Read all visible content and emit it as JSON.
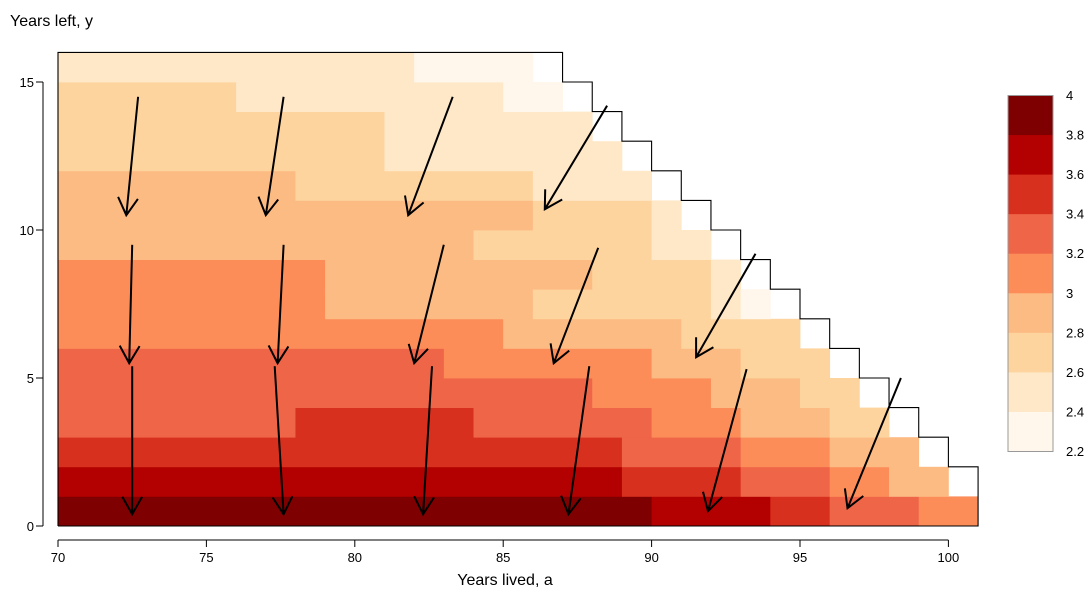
{
  "chart_data": {
    "type": "heatmap",
    "title": "",
    "xlabel": "Years lived, a",
    "ylabel": "Years left, y",
    "xlim": [
      70,
      101
    ],
    "ylim": [
      0,
      16
    ],
    "x_ticks": [
      "70",
      "75",
      "80",
      "85",
      "90",
      "95",
      "100"
    ],
    "y_ticks": [
      "0",
      "5",
      "10",
      "15"
    ],
    "legend": {
      "position": "right",
      "labels": [
        "4",
        "3.8",
        "3.6",
        "3.4",
        "3.2",
        "3",
        "2.8",
        "2.6",
        "2.4",
        "2.2"
      ],
      "colors": [
        "#7f0000",
        "#b30000",
        "#d7301f",
        "#ef6548",
        "#fc8d59",
        "#fdbb84",
        "#fdd49e",
        "#fee8c8",
        "#fff7ec"
      ]
    },
    "palette": {
      "2.2-2.4": "#fff7ec",
      "2.4-2.6": "#fee8c8",
      "2.6-2.8": "#fdd49e",
      "2.8-3.0": "#fdbb84",
      "3.0-3.2": "#fc8d59",
      "3.2-3.4": "#ef6548",
      "3.4-3.6": "#d7301f",
      "3.6-3.8": "#b30000",
      "3.8-4.0": "#7f0000"
    },
    "domain_edge": [
      {
        "a": 70,
        "max_y": 16
      },
      {
        "a": 86,
        "max_y": 16
      },
      {
        "a": 87,
        "max_y": 15
      },
      {
        "a": 88,
        "max_y": 14
      },
      {
        "a": 89,
        "max_y": 13
      },
      {
        "a": 90,
        "max_y": 12
      },
      {
        "a": 91,
        "max_y": 11
      },
      {
        "a": 92,
        "max_y": 10
      },
      {
        "a": 93,
        "max_y": 9
      },
      {
        "a": 94,
        "max_y": 8
      },
      {
        "a": 95,
        "max_y": 7
      },
      {
        "a": 96,
        "max_y": 6
      },
      {
        "a": 97,
        "max_y": 5
      },
      {
        "a": 98,
        "max_y": 4
      },
      {
        "a": 99,
        "max_y": 3
      },
      {
        "a": 100,
        "max_y": 2
      },
      {
        "a": 101,
        "max_y": 1
      }
    ],
    "bands": [
      {
        "y": [
          0,
          1
        ],
        "segments": [
          [
            70,
            90,
            "3.8-4.0"
          ],
          [
            90,
            94,
            "3.6-3.8"
          ],
          [
            94,
            96,
            "3.4-3.6"
          ],
          [
            96,
            99,
            "3.2-3.4"
          ],
          [
            99,
            101,
            "3.0-3.2"
          ]
        ]
      },
      {
        "y": [
          1,
          2
        ],
        "segments": [
          [
            70,
            89,
            "3.6-3.8"
          ],
          [
            89,
            93,
            "3.4-3.6"
          ],
          [
            93,
            96,
            "3.2-3.4"
          ],
          [
            96,
            98,
            "3.0-3.2"
          ],
          [
            98,
            100,
            "2.8-3.0"
          ]
        ]
      },
      {
        "y": [
          2,
          3
        ],
        "segments": [
          [
            70,
            89,
            "3.4-3.6"
          ],
          [
            89,
            93,
            "3.2-3.4"
          ],
          [
            93,
            96,
            "3.0-3.2"
          ],
          [
            96,
            99,
            "2.8-3.0"
          ]
        ]
      },
      {
        "y": [
          3,
          4
        ],
        "segments": [
          [
            70,
            78,
            "3.2-3.4"
          ],
          [
            78,
            84,
            "3.4-3.6"
          ],
          [
            84,
            90,
            "3.2-3.4"
          ],
          [
            90,
            93,
            "3.0-3.2"
          ],
          [
            93,
            96,
            "2.8-3.0"
          ],
          [
            96,
            98,
            "2.6-2.8"
          ]
        ]
      },
      {
        "y": [
          4,
          5
        ],
        "segments": [
          [
            70,
            88,
            "3.2-3.4"
          ],
          [
            88,
            92,
            "3.0-3.2"
          ],
          [
            92,
            95,
            "2.8-3.0"
          ],
          [
            95,
            97,
            "2.6-2.8"
          ]
        ]
      },
      {
        "y": [
          5,
          6
        ],
        "segments": [
          [
            70,
            83,
            "3.2-3.4"
          ],
          [
            83,
            90,
            "3.0-3.2"
          ],
          [
            90,
            93,
            "2.8-3.0"
          ],
          [
            93,
            96,
            "2.6-2.8"
          ]
        ]
      },
      {
        "y": [
          6,
          7
        ],
        "segments": [
          [
            70,
            85,
            "3.0-3.2"
          ],
          [
            85,
            91,
            "2.8-3.0"
          ],
          [
            91,
            95,
            "2.6-2.8"
          ]
        ]
      },
      {
        "y": [
          7,
          8
        ],
        "segments": [
          [
            70,
            79,
            "3.0-3.2"
          ],
          [
            79,
            86,
            "2.8-3.0"
          ],
          [
            86,
            92,
            "2.6-2.8"
          ],
          [
            92,
            93,
            "2.4-2.6"
          ],
          [
            93,
            94,
            "2.2-2.4"
          ]
        ]
      },
      {
        "y": [
          8,
          9
        ],
        "segments": [
          [
            70,
            79,
            "3.0-3.2"
          ],
          [
            79,
            88,
            "2.8-3.0"
          ],
          [
            88,
            92,
            "2.6-2.8"
          ],
          [
            92,
            93,
            "2.4-2.6"
          ]
        ]
      },
      {
        "y": [
          9,
          10
        ],
        "segments": [
          [
            70,
            84,
            "2.8-3.0"
          ],
          [
            84,
            90,
            "2.6-2.8"
          ],
          [
            90,
            92,
            "2.4-2.6"
          ]
        ]
      },
      {
        "y": [
          10,
          11
        ],
        "segments": [
          [
            70,
            86,
            "2.8-3.0"
          ],
          [
            86,
            90,
            "2.6-2.8"
          ],
          [
            90,
            91,
            "2.4-2.6"
          ]
        ]
      },
      {
        "y": [
          11,
          12
        ],
        "segments": [
          [
            70,
            78,
            "2.8-3.0"
          ],
          [
            78,
            86,
            "2.6-2.8"
          ],
          [
            86,
            90,
            "2.4-2.6"
          ]
        ]
      },
      {
        "y": [
          12,
          13
        ],
        "segments": [
          [
            70,
            81,
            "2.6-2.8"
          ],
          [
            81,
            84,
            "2.4-2.6"
          ],
          [
            84,
            89,
            "2.4-2.6"
          ]
        ]
      },
      {
        "y": [
          13,
          14
        ],
        "segments": [
          [
            70,
            81,
            "2.6-2.8"
          ],
          [
            81,
            88,
            "2.4-2.6"
          ]
        ]
      },
      {
        "y": [
          14,
          15
        ],
        "segments": [
          [
            70,
            76,
            "2.6-2.8"
          ],
          [
            76,
            85,
            "2.4-2.6"
          ],
          [
            85,
            87,
            "2.2-2.4"
          ]
        ]
      },
      {
        "y": [
          15,
          16
        ],
        "segments": [
          [
            70,
            82,
            "2.4-2.6"
          ],
          [
            82,
            86,
            "2.2-2.4"
          ]
        ]
      }
    ],
    "arrows": [
      {
        "from": [
          72.7,
          14.5
        ],
        "to": [
          72.3,
          10.5
        ]
      },
      {
        "from": [
          77.6,
          14.5
        ],
        "to": [
          77.0,
          10.5
        ]
      },
      {
        "from": [
          83.3,
          14.5
        ],
        "to": [
          81.8,
          10.5
        ]
      },
      {
        "from": [
          88.5,
          14.2
        ],
        "to": [
          86.4,
          10.7
        ]
      },
      {
        "from": [
          72.5,
          9.5
        ],
        "to": [
          72.4,
          5.5
        ]
      },
      {
        "from": [
          77.6,
          9.5
        ],
        "to": [
          77.4,
          5.5
        ]
      },
      {
        "from": [
          83.0,
          9.5
        ],
        "to": [
          82.0,
          5.5
        ]
      },
      {
        "from": [
          88.2,
          9.4
        ],
        "to": [
          86.7,
          5.5
        ]
      },
      {
        "from": [
          93.5,
          9.2
        ],
        "to": [
          91.5,
          5.7
        ]
      },
      {
        "from": [
          72.5,
          5.4
        ],
        "to": [
          72.5,
          0.4
        ]
      },
      {
        "from": [
          77.3,
          5.4
        ],
        "to": [
          77.6,
          0.4
        ]
      },
      {
        "from": [
          82.6,
          5.4
        ],
        "to": [
          82.3,
          0.4
        ]
      },
      {
        "from": [
          87.9,
          5.4
        ],
        "to": [
          87.2,
          0.4
        ]
      },
      {
        "from": [
          93.2,
          5.3
        ],
        "to": [
          91.9,
          0.5
        ]
      },
      {
        "from": [
          98.4,
          5.0
        ],
        "to": [
          96.6,
          0.6
        ]
      }
    ]
  }
}
